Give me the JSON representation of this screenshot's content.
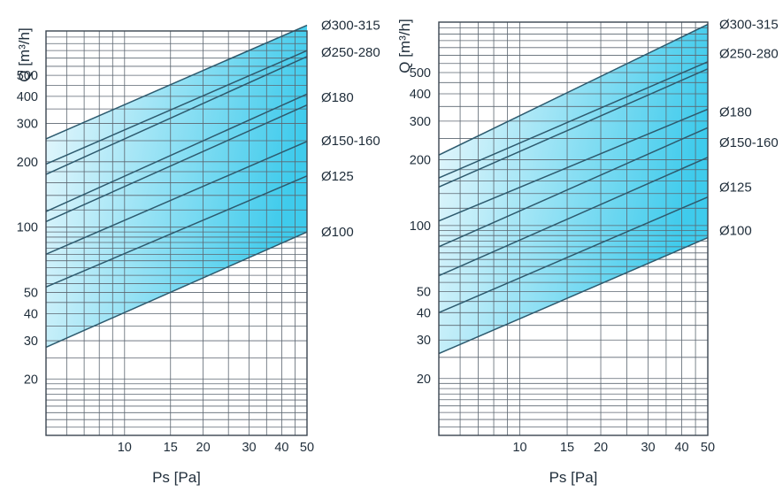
{
  "chart_data": [
    {
      "type": "line",
      "x_scale": "log",
      "y_scale": "log",
      "xlim": [
        5,
        50
      ],
      "ylim": [
        11,
        800
      ],
      "xlabel": "Ps [Pa]",
      "ylabel": "Q [m³/h]",
      "xticks": [
        {
          "v": 10,
          "label": "10"
        },
        {
          "v": 15,
          "label": "15"
        },
        {
          "v": 20,
          "label": "20"
        },
        {
          "v": 30,
          "label": "30"
        },
        {
          "v": 40,
          "label": "40"
        },
        {
          "v": 50,
          "label": "50"
        }
      ],
      "yticks": [
        {
          "v": 20,
          "label": "20"
        },
        {
          "v": 30,
          "label": "30"
        },
        {
          "v": 40,
          "label": "40"
        },
        {
          "v": 50,
          "label": "50"
        },
        {
          "v": 100,
          "label": "100"
        },
        {
          "v": 200,
          "label": "200"
        },
        {
          "v": 300,
          "label": "300"
        },
        {
          "v": 400,
          "label": "400"
        },
        {
          "v": 500,
          "label": "500"
        }
      ],
      "grid": true,
      "band": {
        "lower": [
          [
            5,
            28
          ],
          [
            50,
            95
          ]
        ],
        "upper": [
          [
            5,
            255
          ],
          [
            50,
            850
          ]
        ]
      },
      "series": [
        {
          "name": "Ø300-315",
          "x": [
            5,
            50
          ],
          "y": [
            255,
            850
          ]
        },
        {
          "name": "Ø250-280",
          "x": [
            5,
            50
          ],
          "y": [
            195,
            650
          ]
        },
        {
          "name": "Ø250-280",
          "x": [
            5,
            50
          ],
          "y": [
            175,
            610
          ]
        },
        {
          "name": "Ø180",
          "x": [
            5,
            50
          ],
          "y": [
            118,
            410
          ]
        },
        {
          "name": "Ø180",
          "x": [
            5,
            50
          ],
          "y": [
            106,
            365
          ]
        },
        {
          "name": "Ø150-160",
          "x": [
            5,
            50
          ],
          "y": [
            75,
            248
          ]
        },
        {
          "name": "Ø125",
          "x": [
            5,
            50
          ],
          "y": [
            53,
            172
          ]
        },
        {
          "name": "Ø100",
          "x": [
            5,
            50
          ],
          "y": [
            28,
            95
          ]
        }
      ],
      "labels": [
        {
          "text": "Ø300-315",
          "at": 850
        },
        {
          "text": "Ø250-280",
          "at": 640
        },
        {
          "text": "Ø180",
          "at": 395
        },
        {
          "text": "Ø150-160",
          "at": 250
        },
        {
          "text": "Ø125",
          "at": 172
        },
        {
          "text": "Ø100",
          "at": 95
        }
      ]
    },
    {
      "type": "line",
      "x_scale": "log",
      "y_scale": "log",
      "xlim": [
        5,
        50
      ],
      "ylim": [
        11,
        850
      ],
      "xlabel": "Ps [Pa]",
      "ylabel": "Q [m³/h]",
      "xticks": [
        {
          "v": 10,
          "label": "10"
        },
        {
          "v": 15,
          "label": "15"
        },
        {
          "v": 20,
          "label": "20"
        },
        {
          "v": 30,
          "label": "30"
        },
        {
          "v": 40,
          "label": "40"
        },
        {
          "v": 50,
          "label": "50"
        }
      ],
      "yticks": [
        {
          "v": 20,
          "label": "20"
        },
        {
          "v": 30,
          "label": "30"
        },
        {
          "v": 40,
          "label": "40"
        },
        {
          "v": 50,
          "label": "50"
        },
        {
          "v": 100,
          "label": "100"
        },
        {
          "v": 200,
          "label": "200"
        },
        {
          "v": 300,
          "label": "300"
        },
        {
          "v": 400,
          "label": "400"
        },
        {
          "v": 500,
          "label": "500"
        }
      ],
      "grid": true,
      "band": {
        "lower": [
          [
            5,
            26
          ],
          [
            50,
            88
          ]
        ],
        "upper": [
          [
            5,
            210
          ],
          [
            50,
            830
          ]
        ]
      },
      "series": [
        {
          "name": "Ø300-315",
          "x": [
            5,
            50
          ],
          "y": [
            210,
            830
          ]
        },
        {
          "name": "Ø250-280",
          "x": [
            5,
            50
          ],
          "y": [
            165,
            560
          ]
        },
        {
          "name": "Ø250-280",
          "x": [
            5,
            50
          ],
          "y": [
            150,
            520
          ]
        },
        {
          "name": "Ø180",
          "x": [
            5,
            50
          ],
          "y": [
            105,
            340
          ]
        },
        {
          "name": "Ø180",
          "x": [
            5,
            50
          ],
          "y": [
            80,
            280
          ]
        },
        {
          "name": "Ø150-160",
          "x": [
            5,
            50
          ],
          "y": [
            59,
            205
          ]
        },
        {
          "name": "Ø125",
          "x": [
            5,
            50
          ],
          "y": [
            40,
            135
          ]
        },
        {
          "name": "Ø100",
          "x": [
            5,
            50
          ],
          "y": [
            26,
            88
          ]
        }
      ],
      "labels": [
        {
          "text": "Ø300-315",
          "at": 830
        },
        {
          "text": "Ø250-280",
          "at": 610
        },
        {
          "text": "Ø180",
          "at": 330
        },
        {
          "text": "Ø150-160",
          "at": 240
        },
        {
          "text": "Ø125",
          "at": 150
        },
        {
          "text": "Ø100",
          "at": 95
        }
      ]
    }
  ],
  "colors": {
    "band_light": "#eef9fd",
    "band_dark": "#3fcbec",
    "curve": "#2d5a6e",
    "grid": "#5c6670"
  }
}
